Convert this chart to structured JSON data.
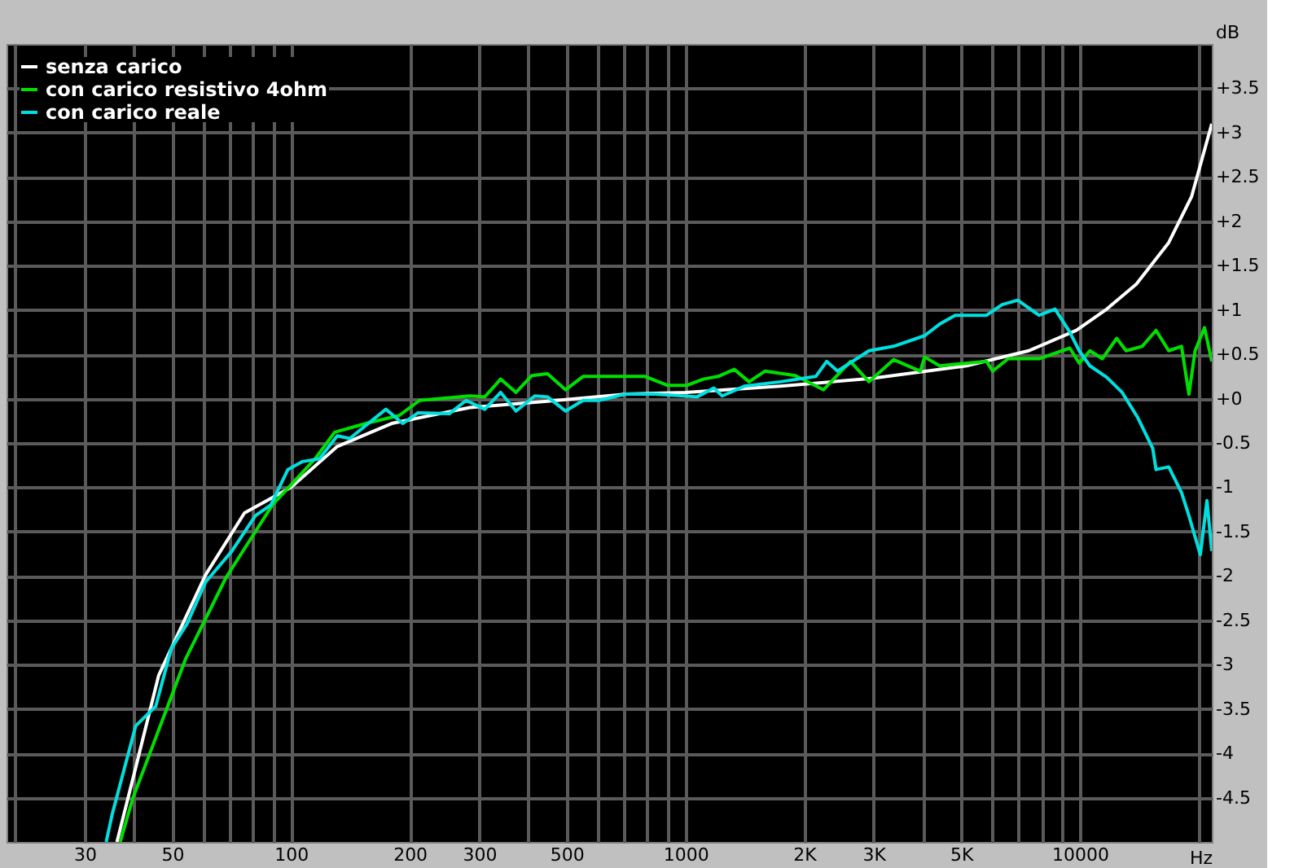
{
  "chart_data": {
    "type": "line",
    "xlabel": "Hz",
    "ylabel": "dB",
    "log": "x",
    "grid": true,
    "legend": "top left",
    "line_style": "solid",
    "marker": "none",
    "xlim": [
      19,
      21600
    ],
    "ylim": [
      -5,
      4
    ],
    "xticks": [
      {
        "value": 20,
        "label": null
      },
      30,
      {
        "value": 40,
        "label": null
      },
      50,
      {
        "value": 60,
        "label": null
      },
      {
        "value": 70,
        "label": null
      },
      {
        "value": 80,
        "label": null
      },
      {
        "value": 90,
        "label": null
      },
      100,
      200,
      300,
      {
        "value": 400,
        "label": null
      },
      500,
      {
        "value": 600,
        "label": null
      },
      {
        "value": 700,
        "label": null
      },
      {
        "value": 800,
        "label": null
      },
      {
        "value": 900,
        "label": null
      },
      1000,
      {
        "value": 2000,
        "label": "2K"
      },
      {
        "value": 3000,
        "label": "3K"
      },
      {
        "value": 4000,
        "label": null
      },
      {
        "value": 5000,
        "label": "5K"
      },
      {
        "value": 6000,
        "label": null
      },
      {
        "value": 7000,
        "label": null
      },
      {
        "value": 8000,
        "label": null
      },
      {
        "value": 9000,
        "label": null
      },
      10000,
      {
        "value": 20000,
        "label": null
      }
    ],
    "yticks": [
      {
        "value": -4.5,
        "label": "-4.5"
      },
      -4,
      -3.5,
      -3,
      -2.5,
      -2,
      -1.5,
      -1,
      -0.5,
      {
        "value": 0,
        "label": "+0"
      },
      {
        "value": 0.5,
        "label": "+0.5"
      },
      {
        "value": 1,
        "label": "+1"
      },
      {
        "value": 1.5,
        "label": "+1.5"
      },
      {
        "value": 2,
        "label": "+2"
      },
      {
        "value": 2.5,
        "label": "+2.5"
      },
      {
        "value": 3,
        "label": "+3"
      },
      {
        "value": 3.5,
        "label": "+3.5"
      }
    ],
    "series": [
      {
        "name": "senza carico",
        "color": "#ffffff",
        "x": [
          36.2,
          40.4,
          46.2,
          60.7,
          76.2,
          100,
          131,
          180,
          284,
          447,
          703,
          1000,
          1740,
          2990,
          5160,
          7420,
          9800,
          11700,
          13900,
          16800,
          19200,
          21600
        ],
        "values": [
          -5.0,
          -4.16,
          -3.12,
          -1.99,
          -1.29,
          -1.0,
          -0.54,
          -0.28,
          -0.1,
          -0.03,
          0.05,
          0.07,
          0.14,
          0.23,
          0.37,
          0.54,
          0.77,
          1.01,
          1.29,
          1.76,
          2.28,
          3.1
        ]
      },
      {
        "name": "con carico resistivo 4ohm",
        "color": "#00e000",
        "x": [
          36.9,
          39.7,
          54.0,
          68.4,
          89.7,
          115,
          129,
          155,
          188,
          212,
          284,
          310,
          340,
          372,
          408,
          447,
          497,
          550,
          641,
          703,
          790,
          900,
          1010,
          1110,
          1210,
          1330,
          1450,
          1590,
          1900,
          2240,
          2620,
          2920,
          3370,
          3940,
          4040,
          4410,
          5800,
          6010,
          6580,
          7880,
          9430,
          9960,
          10600,
          11400,
          12400,
          13100,
          14400,
          15600,
          16800,
          18100,
          18900,
          19600,
          20700,
          21600
        ],
        "values": [
          -5.0,
          -4.51,
          -2.94,
          -2.02,
          -1.2,
          -0.68,
          -0.38,
          -0.28,
          -0.19,
          -0.02,
          0.03,
          0.02,
          0.22,
          0.07,
          0.26,
          0.28,
          0.1,
          0.25,
          0.25,
          0.25,
          0.25,
          0.15,
          0.15,
          0.22,
          0.25,
          0.33,
          0.19,
          0.31,
          0.26,
          0.1,
          0.42,
          0.19,
          0.44,
          0.31,
          0.47,
          0.37,
          0.42,
          0.31,
          0.45,
          0.45,
          0.57,
          0.4,
          0.54,
          0.45,
          0.68,
          0.54,
          0.59,
          0.77,
          0.54,
          0.59,
          0.05,
          0.54,
          0.8,
          0.42
        ]
      },
      {
        "name": "con carico reale",
        "color": "#00e0e0",
        "x": [
          34.0,
          35.2,
          40.4,
          45.4,
          49.7,
          54.5,
          60.7,
          70.8,
          81.2,
          88.9,
          98.2,
          107,
          118,
          131,
          141,
          155,
          174,
          192,
          210,
          252,
          278,
          310,
          340,
          372,
          415,
          447,
          497,
          550,
          603,
          703,
          840,
          1070,
          1180,
          1240,
          1410,
          1740,
          2140,
          2280,
          2430,
          2920,
          3370,
          4040,
          4410,
          4830,
          5800,
          6350,
          6960,
          7880,
          8650,
          9430,
          9960,
          10600,
          11700,
          12800,
          14000,
          15300,
          15600,
          16800,
          18100,
          18900,
          20200,
          21000,
          21600
        ],
        "values": [
          -5.0,
          -4.69,
          -3.69,
          -3.47,
          -2.82,
          -2.54,
          -2.07,
          -1.72,
          -1.32,
          -1.2,
          -0.8,
          -0.71,
          -0.68,
          -0.42,
          -0.45,
          -0.3,
          -0.12,
          -0.28,
          -0.16,
          -0.17,
          -0.02,
          -0.12,
          0.07,
          -0.14,
          0.03,
          0.02,
          -0.14,
          -0.02,
          -0.02,
          0.05,
          0.05,
          0.02,
          0.12,
          0.03,
          0.14,
          0.19,
          0.25,
          0.42,
          0.31,
          0.54,
          0.59,
          0.71,
          0.84,
          0.94,
          0.94,
          1.06,
          1.11,
          0.94,
          1.01,
          0.75,
          0.54,
          0.37,
          0.24,
          0.07,
          -0.21,
          -0.56,
          -0.8,
          -0.77,
          -1.06,
          -1.32,
          -1.76,
          -1.15,
          -1.72
        ]
      }
    ]
  }
}
